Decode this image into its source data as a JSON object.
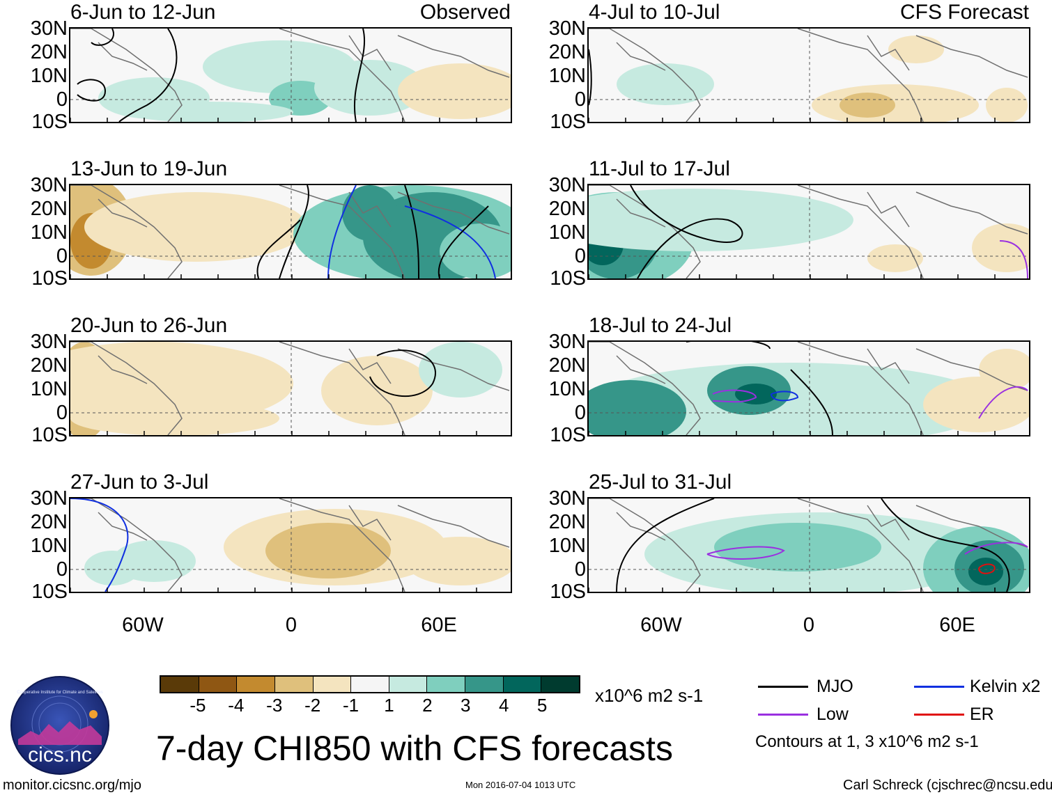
{
  "panels": [
    {
      "title": "6-Jun to 12-Jun",
      "tag": "Observed"
    },
    {
      "title": "4-Jul to 10-Jul",
      "tag": "CFS Forecast"
    },
    {
      "title": "13-Jun to 19-Jun",
      "tag": ""
    },
    {
      "title": "11-Jul to 17-Jul",
      "tag": ""
    },
    {
      "title": "20-Jun to 26-Jun",
      "tag": ""
    },
    {
      "title": "18-Jul to 24-Jul",
      "tag": ""
    },
    {
      "title": "27-Jun to 3-Jul",
      "tag": ""
    },
    {
      "title": "25-Jul to 31-Jul",
      "tag": ""
    }
  ],
  "lat_labels": [
    "30N",
    "20N",
    "10N",
    "0",
    "10S"
  ],
  "lon_labels": [
    "60W",
    "0",
    "60E"
  ],
  "colorbar": {
    "ticks": [
      "-5",
      "-4",
      "-3",
      "-2",
      "-1",
      "1",
      "2",
      "3",
      "4",
      "5"
    ],
    "units": "x10^6 m2 s-1",
    "colors": [
      "#5a3a08",
      "#8f5713",
      "#c38a2f",
      "#dfc07c",
      "#f4e4bf",
      "#f5f5f5",
      "#c6eae0",
      "#7fcfbe",
      "#369689",
      "#02665c",
      "#003b2f"
    ]
  },
  "legend": {
    "items": [
      {
        "label": "MJO",
        "color": "#000000"
      },
      {
        "label": "Kelvin x2",
        "color": "#1030e0"
      },
      {
        "label": "Low",
        "color": "#9a30e0"
      },
      {
        "label": "ER",
        "color": "#e01010"
      }
    ],
    "note": "Contours at 1, 3 x10^6 m2 s-1"
  },
  "main_title": "7-day CHI850 with CFS forecasts",
  "logo_text": "cics.nc",
  "logo_ring_text": "Cooperative Institute for Climate and Satellites",
  "footer": {
    "left": "monitor.cicsnc.org/mjo",
    "center": "Mon 2016-07-04 1013 UTC",
    "right": "Carl Schreck (cjschrec@ncsu.edu)"
  }
}
